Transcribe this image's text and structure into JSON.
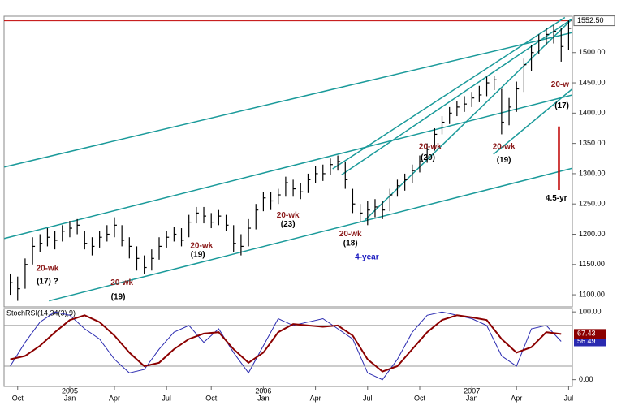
{
  "chart_data": [
    {
      "type": "hlc",
      "color": "#000000",
      "ylim": [
        1080,
        1560
      ],
      "yticks": [
        {
          "value": 1100,
          "label": "1100.00"
        },
        {
          "value": 1150,
          "label": "1150.00"
        },
        {
          "value": 1200,
          "label": "1200.00"
        },
        {
          "value": 1250,
          "label": "1250.00"
        },
        {
          "value": 1300,
          "label": "1300.00"
        },
        {
          "value": 1350,
          "label": "1350.00"
        },
        {
          "value": 1400,
          "label": "1400.00"
        },
        {
          "value": 1450,
          "label": "1450.00"
        },
        {
          "value": 1500,
          "label": "1500.00"
        }
      ],
      "price_line": {
        "value": 1552.5,
        "label": "1552.50",
        "color": "#c00000"
      },
      "xticks": [
        {
          "value": 1,
          "label": "Oct"
        },
        {
          "value": 8,
          "label": "Jan"
        },
        {
          "value": 14,
          "label": "Apr"
        },
        {
          "value": 21,
          "label": "Jul"
        },
        {
          "value": 27,
          "label": "Oct"
        },
        {
          "value": 34,
          "label": "Jan"
        },
        {
          "value": 41,
          "label": "Apr"
        },
        {
          "value": 48,
          "label": "Jul"
        },
        {
          "value": 55,
          "label": "Oct"
        },
        {
          "value": 62,
          "label": "Jan"
        },
        {
          "value": 68,
          "label": "Apr"
        },
        {
          "value": 75,
          "label": "Jul"
        }
      ],
      "year_labels": [
        {
          "value": 8,
          "label": "2005"
        },
        {
          "value": 34,
          "label": "2006"
        },
        {
          "value": 62,
          "label": "2007"
        }
      ],
      "close": [
        1120,
        1110,
        1150,
        1180,
        1185,
        1195,
        1190,
        1205,
        1210,
        1215,
        1185,
        1180,
        1195,
        1200,
        1215,
        1190,
        1180,
        1160,
        1145,
        1160,
        1180,
        1195,
        1200,
        1190,
        1220,
        1235,
        1230,
        1220,
        1230,
        1215,
        1185,
        1180,
        1210,
        1240,
        1260,
        1255,
        1265,
        1285,
        1275,
        1270,
        1290,
        1300,
        1300,
        1315,
        1320,
        1290,
        1250,
        1235,
        1240,
        1245,
        1240,
        1265,
        1280,
        1290,
        1305,
        1320,
        1340,
        1365,
        1385,
        1400,
        1410,
        1415,
        1425,
        1430,
        1450,
        1455,
        1385,
        1410,
        1440,
        1480,
        1500,
        1520,
        1530,
        1535,
        1510,
        1540
      ],
      "high": [
        1135,
        1130,
        1160,
        1195,
        1200,
        1210,
        1205,
        1215,
        1222,
        1225,
        1205,
        1195,
        1205,
        1215,
        1228,
        1215,
        1195,
        1180,
        1165,
        1175,
        1195,
        1205,
        1212,
        1210,
        1232,
        1245,
        1245,
        1235,
        1240,
        1232,
        1215,
        1200,
        1225,
        1250,
        1270,
        1270,
        1275,
        1295,
        1290,
        1285,
        1300,
        1312,
        1315,
        1325,
        1330,
        1320,
        1275,
        1250,
        1255,
        1258,
        1255,
        1275,
        1290,
        1300,
        1315,
        1330,
        1350,
        1375,
        1395,
        1410,
        1420,
        1428,
        1435,
        1445,
        1460,
        1462,
        1440,
        1425,
        1452,
        1490,
        1512,
        1530,
        1540,
        1545,
        1540,
        1553
      ],
      "low": [
        1100,
        1090,
        1110,
        1150,
        1170,
        1180,
        1175,
        1188,
        1195,
        1200,
        1175,
        1165,
        1178,
        1188,
        1195,
        1180,
        1160,
        1140,
        1135,
        1140,
        1158,
        1178,
        1188,
        1180,
        1195,
        1218,
        1218,
        1210,
        1215,
        1205,
        1170,
        1165,
        1180,
        1208,
        1238,
        1240,
        1250,
        1262,
        1262,
        1258,
        1268,
        1285,
        1288,
        1298,
        1305,
        1275,
        1235,
        1220,
        1215,
        1228,
        1225,
        1238,
        1262,
        1272,
        1285,
        1302,
        1318,
        1338,
        1365,
        1382,
        1395,
        1402,
        1410,
        1418,
        1428,
        1438,
        1365,
        1380,
        1402,
        1435,
        1470,
        1498,
        1512,
        1515,
        1485,
        1505
      ],
      "trendline_color": "#1a9a9a",
      "trendlines": [
        {
          "x": [
            -0.8,
            75.5
          ],
          "y": [
            1311,
            1533
          ]
        },
        {
          "x": [
            -0.8,
            75.5
          ],
          "y": [
            1193,
            1430
          ]
        },
        {
          "x": [
            5.2,
            75.5
          ],
          "y": [
            1090,
            1309
          ]
        },
        {
          "x": [
            43.3,
            74.5
          ],
          "y": [
            1308,
            1558
          ]
        },
        {
          "x": [
            44.5,
            75.5
          ],
          "y": [
            1298,
            1556
          ]
        },
        {
          "x": [
            47.7,
            76.1
          ],
          "y": [
            1224,
            1563
          ]
        },
        {
          "x": [
            64.9,
            75.5
          ],
          "y": [
            1332,
            1440
          ]
        }
      ],
      "red_segment": {
        "x": 73.7,
        "y": [
          1378,
          1273
        ],
        "color": "#c00000"
      },
      "annotations": [
        {
          "text": "20-wk",
          "x": 5,
          "y": 1143,
          "color": "#8b1a1a"
        },
        {
          "text": "(17) ?",
          "x": 5,
          "y": 1122,
          "color": "#000000"
        },
        {
          "text": "20-wk",
          "x": 15,
          "y": 1120,
          "color": "#8b1a1a"
        },
        {
          "text": "(19)",
          "x": 14.5,
          "y": 1096,
          "color": "#000000"
        },
        {
          "text": "20-wk",
          "x": 25.7,
          "y": 1181,
          "color": "#8b1a1a"
        },
        {
          "text": "(19)",
          "x": 25.2,
          "y": 1166,
          "color": "#000000"
        },
        {
          "text": "20-wk",
          "x": 37.3,
          "y": 1231,
          "color": "#8b1a1a"
        },
        {
          "text": "(23)",
          "x": 37.3,
          "y": 1216,
          "color": "#000000"
        },
        {
          "text": "20-wk",
          "x": 45.7,
          "y": 1200,
          "color": "#8b1a1a"
        },
        {
          "text": "(18)",
          "x": 45.7,
          "y": 1185,
          "color": "#000000"
        },
        {
          "text": "4-year",
          "x": 47.9,
          "y": 1162,
          "color": "#1a1ac0"
        },
        {
          "text": "20-wk",
          "x": 56.4,
          "y": 1344,
          "color": "#8b1a1a"
        },
        {
          "text": "(20)",
          "x": 56.1,
          "y": 1326,
          "color": "#000000"
        },
        {
          "text": "20-wk",
          "x": 66.3,
          "y": 1344,
          "color": "#8b1a1a"
        },
        {
          "text": "(19)",
          "x": 66.3,
          "y": 1322,
          "color": "#000000"
        },
        {
          "text": "20-w",
          "x": 76.2,
          "y": 1447,
          "color": "#8b1a1a"
        },
        {
          "text": "(17)",
          "x": 75.4,
          "y": 1412,
          "color": "#000000"
        },
        {
          "text": "4.5-yr",
          "x": 74.8,
          "y": 1259,
          "color": "#000000"
        }
      ]
    },
    {
      "type": "line",
      "title": "StochRSI(14,34(3),9)",
      "ylim": [
        -10,
        105
      ],
      "yticks": [
        {
          "value": 100,
          "label": "100.00"
        },
        {
          "value": 0,
          "label": "0.00"
        }
      ],
      "guide_levels": [
        80,
        20
      ],
      "x": [
        0,
        2,
        4,
        6,
        8,
        10,
        12,
        14,
        16,
        18,
        20,
        22,
        24,
        26,
        28,
        30,
        32,
        34,
        36,
        38,
        40,
        42,
        44,
        46,
        48,
        50,
        52,
        54,
        56,
        58,
        60,
        62,
        64,
        66,
        68,
        70,
        72,
        74
      ],
      "series": [
        {
          "color": "#2a2ab0",
          "width": 1,
          "values": [
            20,
            55,
            85,
            100,
            95,
            75,
            60,
            30,
            10,
            15,
            45,
            70,
            80,
            55,
            75,
            40,
            10,
            50,
            90,
            80,
            85,
            90,
            75,
            60,
            10,
            0,
            30,
            70,
            95,
            100,
            95,
            90,
            80,
            35,
            20,
            75,
            80,
            56.49
          ]
        },
        {
          "color": "#8b0000",
          "width": 2,
          "values": [
            30,
            35,
            50,
            70,
            88,
            95,
            85,
            65,
            40,
            20,
            25,
            45,
            60,
            68,
            70,
            45,
            25,
            40,
            70,
            82,
            80,
            78,
            80,
            65,
            30,
            12,
            20,
            45,
            70,
            88,
            95,
            92,
            88,
            60,
            40,
            48,
            70,
            67.43
          ]
        }
      ]
    }
  ]
}
